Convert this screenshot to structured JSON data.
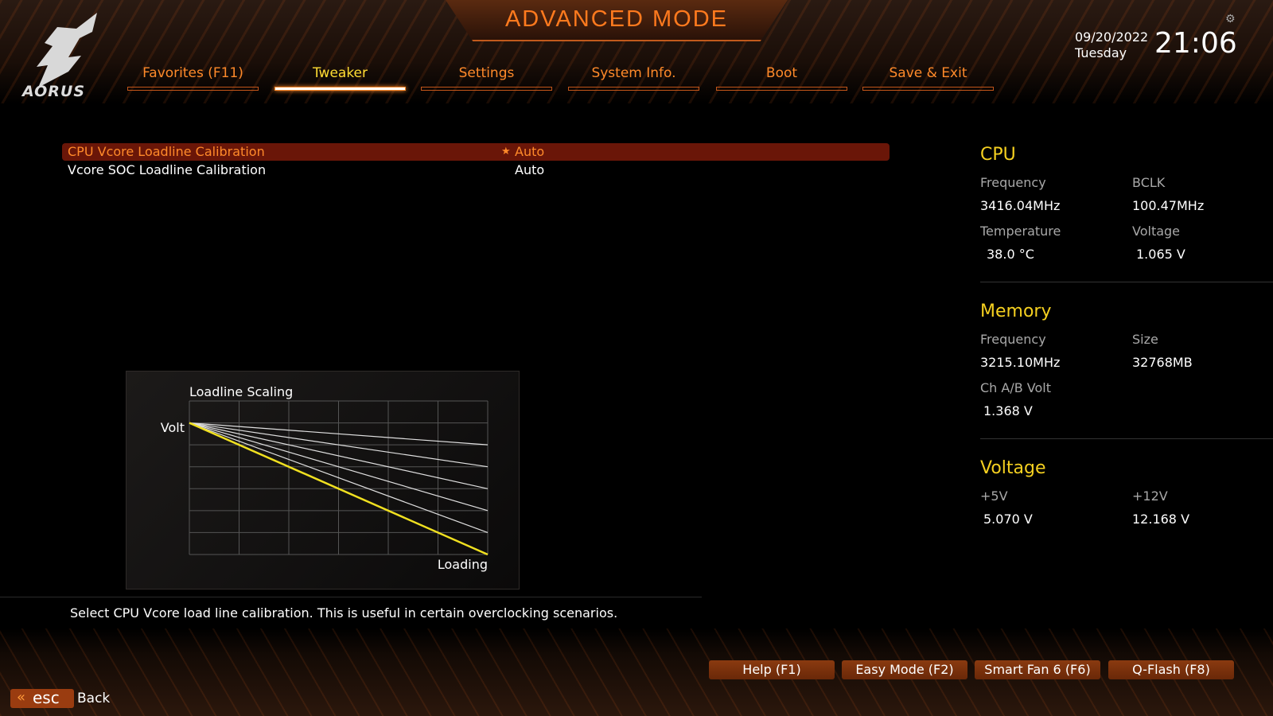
{
  "header": {
    "title": "ADVANCED MODE",
    "brand": "AORUS",
    "date": "09/20/2022",
    "weekday": "Tuesday",
    "time": "21:06"
  },
  "tabs": [
    {
      "label": "Favorites (F11)"
    },
    {
      "label": "Tweaker",
      "active": true
    },
    {
      "label": "Settings"
    },
    {
      "label": "System Info."
    },
    {
      "label": "Boot"
    },
    {
      "label": "Save & Exit"
    }
  ],
  "settings": [
    {
      "label": "CPU Vcore Loadline Calibration",
      "value": "Auto",
      "selected": true,
      "favorite": true
    },
    {
      "label": "Vcore SOC Loadline Calibration",
      "value": "Auto"
    }
  ],
  "chart_data": {
    "type": "line",
    "title": "Loadline Scaling",
    "xlabel": "Loading",
    "ylabel": "Volt",
    "xlim": [
      0,
      6
    ],
    "ylim": [
      0,
      7
    ],
    "grid": true,
    "series": [
      {
        "x": [
          0,
          6
        ],
        "y": [
          6,
          5
        ]
      },
      {
        "x": [
          0,
          6
        ],
        "y": [
          6,
          4
        ]
      },
      {
        "x": [
          0,
          6
        ],
        "y": [
          6,
          3
        ]
      },
      {
        "x": [
          0,
          6
        ],
        "y": [
          6,
          2
        ]
      },
      {
        "x": [
          0,
          6
        ],
        "y": [
          6,
          1
        ]
      },
      {
        "x": [
          0,
          6
        ],
        "y": [
          6,
          0
        ],
        "highlight": true
      }
    ],
    "colors": {
      "normal": "#e0e0e0",
      "highlight": "#f0e020"
    }
  },
  "description": "Select CPU Vcore load line calibration. This is useful in certain overclocking scenarios.",
  "info": {
    "cpu": {
      "title": "CPU",
      "freq_label": "Frequency",
      "freq": "3416.04MHz",
      "bclk_label": "BCLK",
      "bclk": "100.47MHz",
      "temp_label": "Temperature",
      "temp": "38.0 °C",
      "volt_label": "Voltage",
      "volt": "1.065 V"
    },
    "memory": {
      "title": "Memory",
      "freq_label": "Frequency",
      "freq": "3215.10MHz",
      "size_label": "Size",
      "size": "32768MB",
      "chvolt_label": "Ch A/B Volt",
      "chvolt": "1.368 V"
    },
    "voltage": {
      "title": "Voltage",
      "v5_label": "+5V",
      "v5": "5.070 V",
      "v12_label": "+12V",
      "v12": "12.168 V"
    }
  },
  "footer": {
    "buttons": [
      {
        "label": "Help (F1)"
      },
      {
        "label": "Easy Mode (F2)"
      },
      {
        "label": "Smart Fan 6 (F6)"
      },
      {
        "label": "Q-Flash (F8)"
      }
    ],
    "esc": "esc",
    "back": "Back"
  },
  "colors": {
    "accent": "#ff8a2a",
    "heading": "#f5d020",
    "selected_row": "#6a1608"
  }
}
